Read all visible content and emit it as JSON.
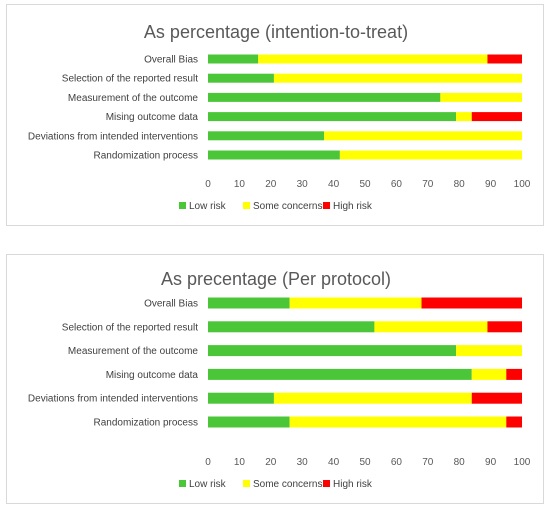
{
  "colors": {
    "low": "#4cc639",
    "some": "#ffff00",
    "high": "#ff0000"
  },
  "chart_data": [
    {
      "type": "bar",
      "orientation": "horizontal",
      "stacked": true,
      "title": "As percentage (intention-to-treat)",
      "categories": [
        "Overall Bias",
        "Selection of the reported result",
        "Measurement of the outcome",
        "Mising outcome data",
        "Deviations from intended interventions",
        "Randomization process"
      ],
      "series": [
        {
          "name": "Low risk",
          "color_key": "low",
          "values": [
            16,
            21,
            74,
            79,
            37,
            42
          ]
        },
        {
          "name": "Some concerns",
          "color_key": "some",
          "values": [
            73,
            79,
            26,
            5,
            63,
            58
          ]
        },
        {
          "name": "High risk",
          "color_key": "high",
          "values": [
            11,
            0,
            0,
            16,
            0,
            0
          ]
        }
      ],
      "xlim": [
        0,
        100
      ],
      "xticks": [
        "0",
        "10",
        "20",
        "30",
        "40",
        "50",
        "60",
        "70",
        "80",
        "90",
        "100"
      ],
      "legend_position": "bottom",
      "grid": false
    },
    {
      "type": "bar",
      "orientation": "horizontal",
      "stacked": true,
      "title": "As precentage (Per protocol)",
      "categories": [
        "Overall Bias",
        "Selection of the reported result",
        "Measurement of the outcome",
        "Mising outcome data",
        "Deviations from intended interventions",
        "Randomization process"
      ],
      "series": [
        {
          "name": "Low risk",
          "color_key": "low",
          "values": [
            26,
            53,
            79,
            84,
            21,
            26
          ]
        },
        {
          "name": "Some concerns",
          "color_key": "some",
          "values": [
            42,
            36,
            21,
            11,
            63,
            69
          ]
        },
        {
          "name": "High risk",
          "color_key": "high",
          "values": [
            32,
            11,
            0,
            5,
            16,
            5
          ]
        }
      ],
      "xlim": [
        0,
        100
      ],
      "xticks": [
        "0",
        "10",
        "20",
        "30",
        "40",
        "50",
        "60",
        "70",
        "80",
        "90",
        "100"
      ],
      "legend_position": "bottom",
      "grid": false
    }
  ]
}
